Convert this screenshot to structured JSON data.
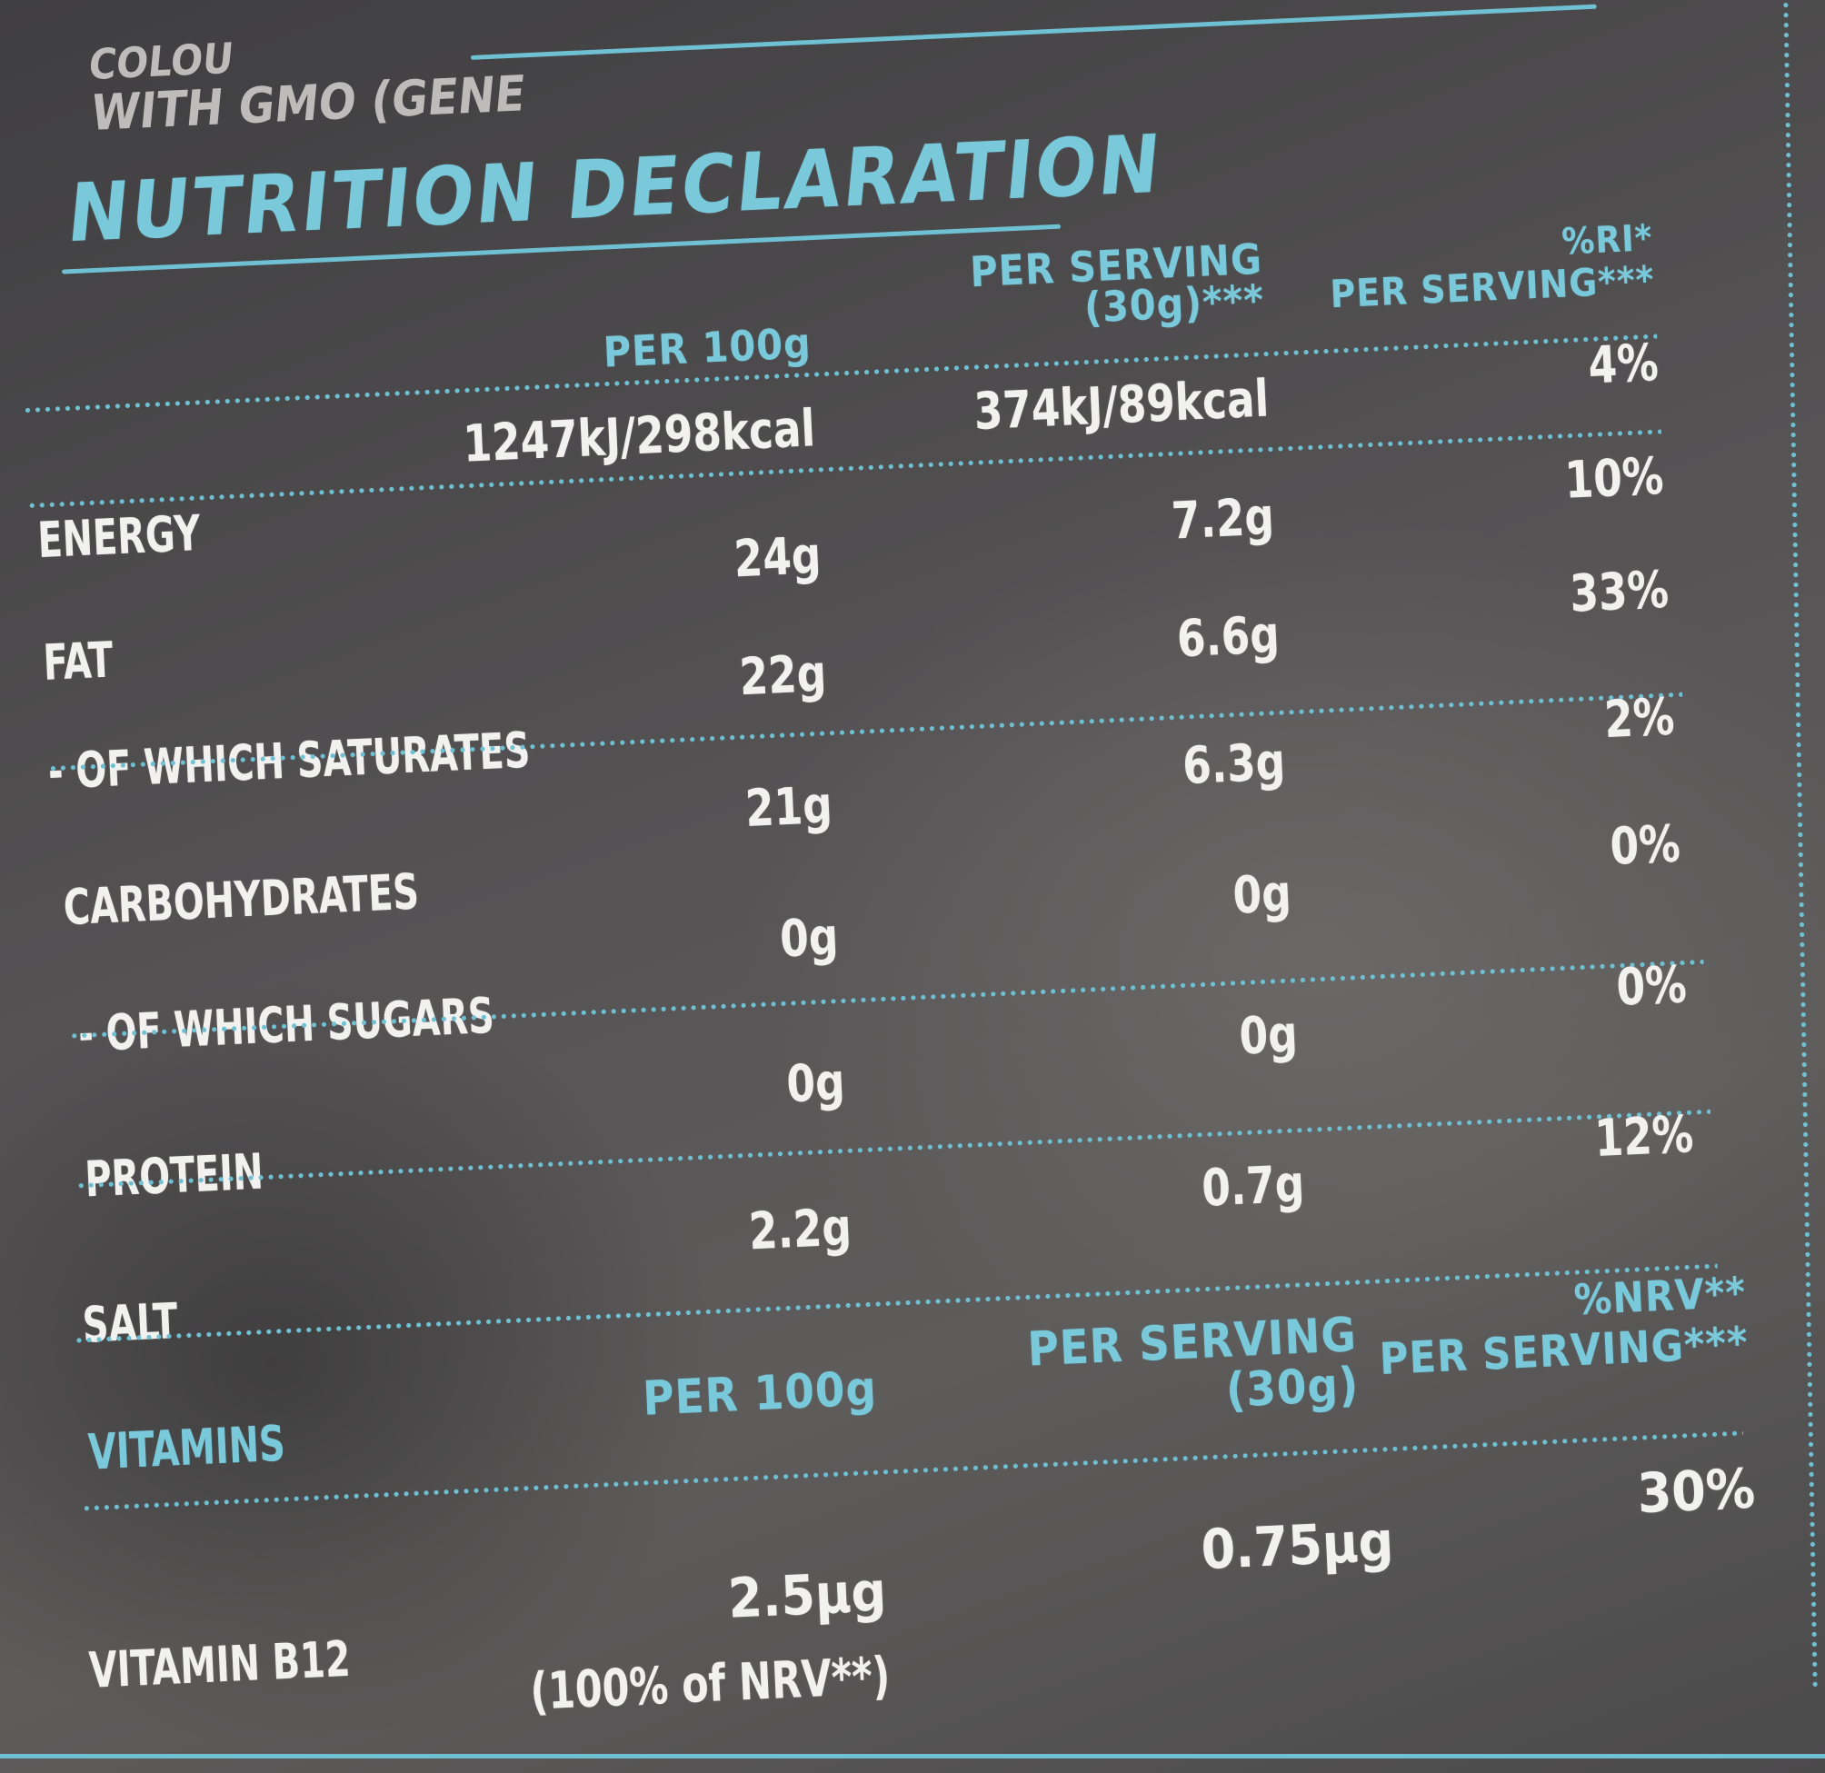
{
  "top_text": {
    "line1": "COLOU",
    "line2": "WITH GMO (GENE"
  },
  "title": "NUTRITION DECLARATION",
  "nutrition": {
    "headers": {
      "per100": "PER 100g",
      "per_serving_line1": "PER SERVING",
      "per_serving_line2": "(30g)***",
      "ri_line1": "%RI*",
      "ri_line2": "PER SERVING***"
    },
    "rows": [
      {
        "label": "ENERGY",
        "per100": "1247kJ/298kcal",
        "serving": "374kJ/89kcal",
        "ri": "4%"
      },
      {
        "label": "FAT",
        "per100": "24g",
        "serving": "7.2g",
        "ri": "10%"
      },
      {
        "label": "- OF WHICH SATURATES",
        "per100": "22g",
        "serving": "6.6g",
        "ri": "33%"
      },
      {
        "label": "CARBOHYDRATES",
        "per100": "21g",
        "serving": "6.3g",
        "ri": "2%"
      },
      {
        "label": "- OF WHICH SUGARS",
        "per100": "0g",
        "serving": "0g",
        "ri": "0%"
      },
      {
        "label": "PROTEIN",
        "per100": "0g",
        "serving": "0g",
        "ri": "0%"
      },
      {
        "label": "SALT",
        "per100": "2.2g",
        "serving": "0.7g",
        "ri": "12%"
      }
    ]
  },
  "vitamins": {
    "headers": {
      "label": "VITAMINS",
      "per100": "PER 100g",
      "per_serving_line1": "PER SERVING",
      "per_serving_line2": "(30g)",
      "nrv_line1": "%NRV**",
      "nrv_line2": "PER SERVING***"
    },
    "rows": [
      {
        "label": "VITAMIN B12",
        "per100": "2.5µg",
        "per100_note": "(100% of NRV**)",
        "serving": "0.75µg",
        "nrv": "30%"
      }
    ]
  }
}
